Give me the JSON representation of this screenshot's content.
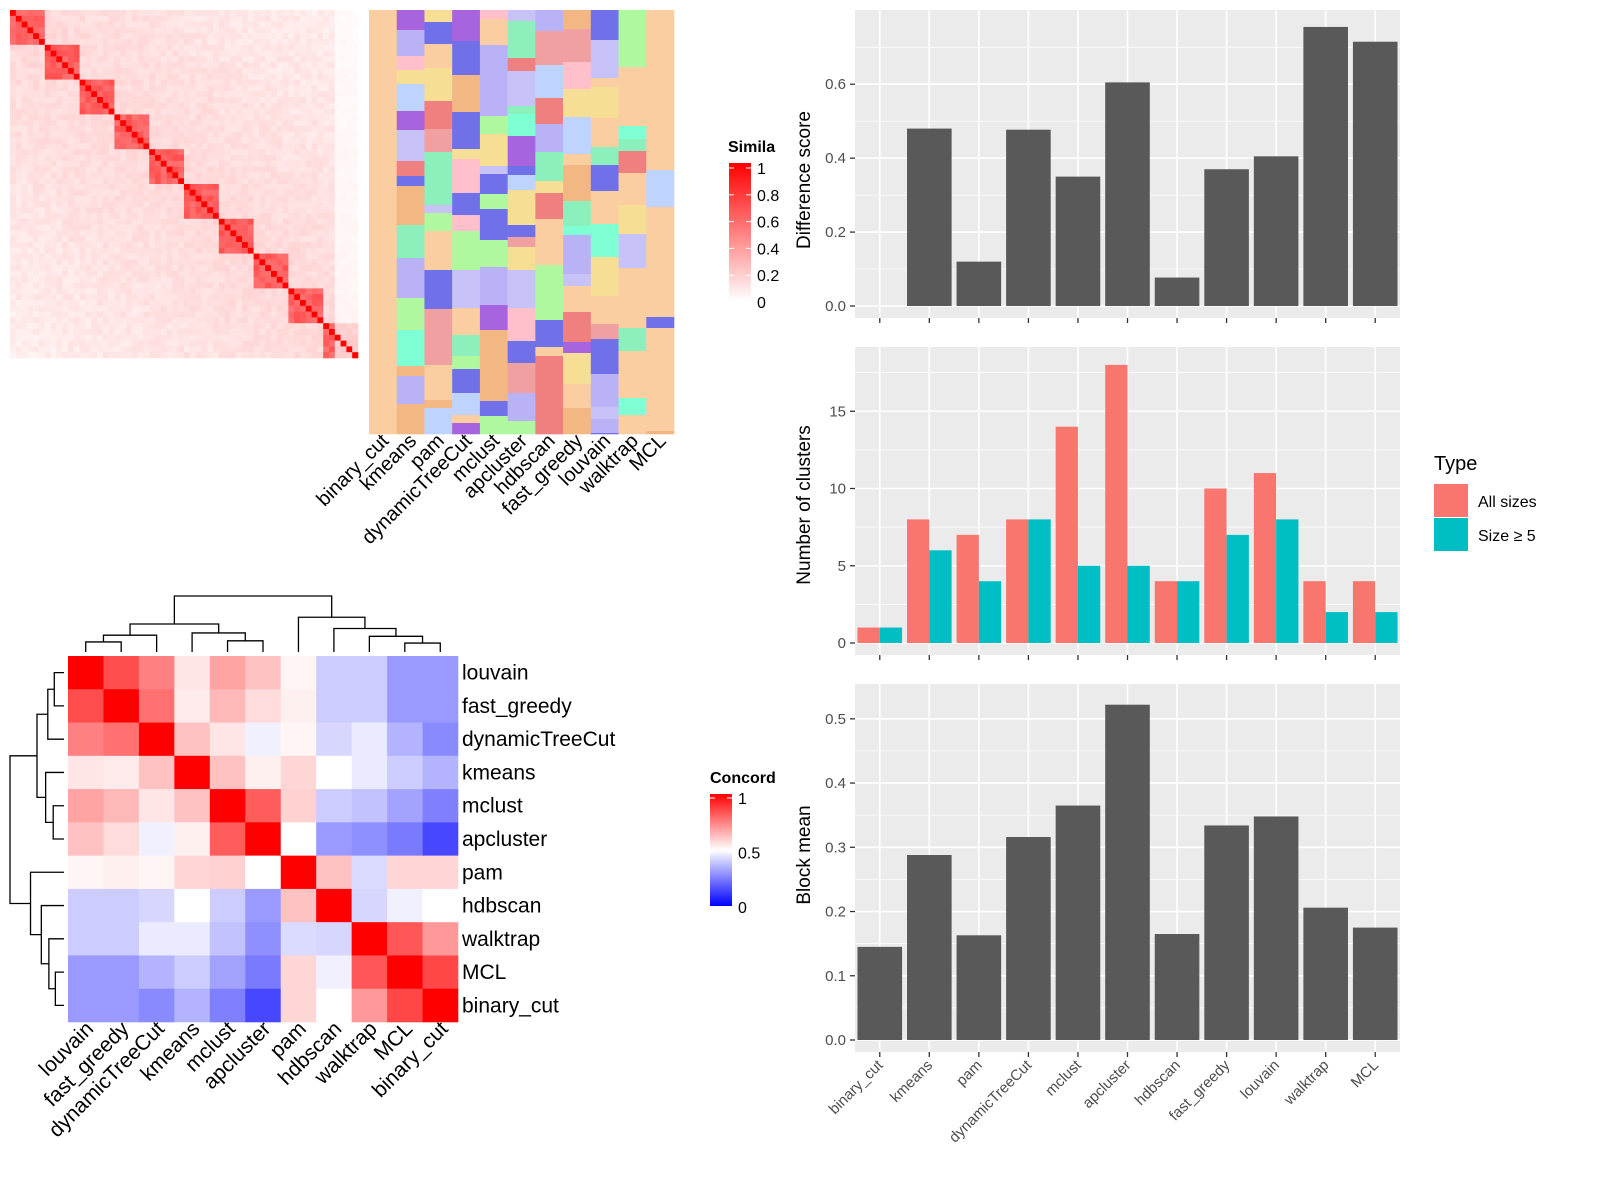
{
  "colors": {
    "bar_gray": "#595959",
    "panel_bg": "#ebebeb",
    "all_sizes": "#F8766D",
    "size_ge5": "#00BFC4",
    "sim_high": "#ff0000",
    "sim_low": "#ffffff",
    "conc_high": "#ff0000",
    "conc_mid": "#ffffff",
    "conc_low": "#0000ff",
    "cluster_palette": [
      "#FBCEA1",
      "#F2B783",
      "#7FFFD4",
      "#F08080",
      "#A863DE",
      "#B9B2F6",
      "#FFC0CB",
      "#AFF8A0",
      "#C7C3F8",
      "#F6DE95",
      "#7070E8",
      "#8CF0BC",
      "#BFD3FF",
      "#F0A0A0"
    ]
  },
  "similarity_heatmap": {
    "legend_title": "Simila",
    "legend_ticks": [
      "1",
      "0.8",
      "0.6",
      "0.4",
      "0.2",
      "0"
    ],
    "method_labels": [
      "binary_cut",
      "kmeans",
      "pam",
      "dynamicTreeCut",
      "mclust",
      "apcluster",
      "hdbscan",
      "fast_greedy",
      "louvain",
      "walktrap",
      "MCL"
    ]
  },
  "concordance_heatmap": {
    "legend_title": "Concord",
    "legend_ticks": [
      "1",
      "0.5",
      "0"
    ],
    "row_labels": [
      "louvain",
      "fast_greedy",
      "dynamicTreeCut",
      "kmeans",
      "mclust",
      "apcluster",
      "pam",
      "hdbscan",
      "walktrap",
      "MCL",
      "binary_cut"
    ],
    "col_labels": [
      "louvain",
      "fast_greedy",
      "dynamicTreeCut",
      "kmeans",
      "mclust",
      "apcluster",
      "pam",
      "hdbscan",
      "walktrap",
      "MCL",
      "binary_cut"
    ],
    "values": [
      [
        1.0,
        0.85,
        0.75,
        0.55,
        0.68,
        0.62,
        0.52,
        0.4,
        0.4,
        0.3,
        0.3
      ],
      [
        0.85,
        1.0,
        0.78,
        0.54,
        0.64,
        0.57,
        0.53,
        0.4,
        0.4,
        0.3,
        0.3
      ],
      [
        0.75,
        0.78,
        1.0,
        0.62,
        0.55,
        0.47,
        0.52,
        0.42,
        0.46,
        0.35,
        0.27
      ],
      [
        0.55,
        0.54,
        0.62,
        1.0,
        0.62,
        0.53,
        0.58,
        0.5,
        0.46,
        0.4,
        0.35
      ],
      [
        0.68,
        0.64,
        0.55,
        0.62,
        1.0,
        0.82,
        0.59,
        0.4,
        0.38,
        0.32,
        0.25
      ],
      [
        0.62,
        0.57,
        0.47,
        0.53,
        0.82,
        1.0,
        0.5,
        0.3,
        0.28,
        0.24,
        0.14
      ],
      [
        0.52,
        0.53,
        0.52,
        0.58,
        0.59,
        0.5,
        1.0,
        0.62,
        0.43,
        0.58,
        0.58
      ],
      [
        0.4,
        0.4,
        0.42,
        0.5,
        0.4,
        0.3,
        0.62,
        1.0,
        0.42,
        0.47,
        0.5
      ],
      [
        0.4,
        0.4,
        0.46,
        0.46,
        0.38,
        0.28,
        0.43,
        0.42,
        1.0,
        0.83,
        0.7
      ],
      [
        0.3,
        0.3,
        0.35,
        0.4,
        0.32,
        0.24,
        0.58,
        0.47,
        0.83,
        1.0,
        0.86
      ],
      [
        0.3,
        0.3,
        0.27,
        0.35,
        0.25,
        0.14,
        0.58,
        0.5,
        0.7,
        0.86,
        1.0
      ]
    ]
  },
  "chart_data": [
    {
      "type": "bar",
      "categories": [
        "binary_cut",
        "kmeans",
        "pam",
        "dynamicTreeCut",
        "mclust",
        "apcluster",
        "hdbscan",
        "fast_greedy",
        "louvain",
        "walktrap",
        "MCL"
      ],
      "values": [
        0.0,
        0.48,
        0.12,
        0.477,
        0.35,
        0.605,
        0.077,
        0.37,
        0.405,
        0.755,
        0.715
      ],
      "ylabel": "Difference score",
      "ylim": [
        0,
        0.79
      ],
      "yticks": [
        "0.0",
        "0.2",
        "0.4",
        "0.6"
      ],
      "grid": true
    },
    {
      "type": "bar",
      "categories": [
        "binary_cut",
        "kmeans",
        "pam",
        "dynamicTreeCut",
        "mclust",
        "apcluster",
        "hdbscan",
        "fast_greedy",
        "louvain",
        "walktrap",
        "MCL"
      ],
      "series": [
        {
          "name": "All sizes",
          "values": [
            1,
            8,
            7,
            8,
            14,
            18,
            4,
            10,
            11,
            4,
            4
          ]
        },
        {
          "name": "Size ≥ 5",
          "values": [
            1,
            6,
            4,
            8,
            5,
            5,
            4,
            7,
            8,
            2,
            2
          ]
        }
      ],
      "ylabel": "Number of clusters",
      "ylim": [
        0,
        18.9
      ],
      "yticks": [
        "0",
        "5",
        "10",
        "15"
      ],
      "legend_title": "Type",
      "legend_position": "right",
      "grid": true
    },
    {
      "type": "bar",
      "categories": [
        "binary_cut",
        "kmeans",
        "pam",
        "dynamicTreeCut",
        "mclust",
        "apcluster",
        "hdbscan",
        "fast_greedy",
        "louvain",
        "walktrap",
        "MCL"
      ],
      "values": [
        0.145,
        0.288,
        0.163,
        0.316,
        0.365,
        0.522,
        0.165,
        0.334,
        0.348,
        0.206,
        0.175
      ],
      "ylabel": "Block mean",
      "ylim": [
        0,
        0.548
      ],
      "yticks": [
        "0.0",
        "0.1",
        "0.2",
        "0.3",
        "0.4",
        "0.5"
      ],
      "grid": true
    }
  ]
}
